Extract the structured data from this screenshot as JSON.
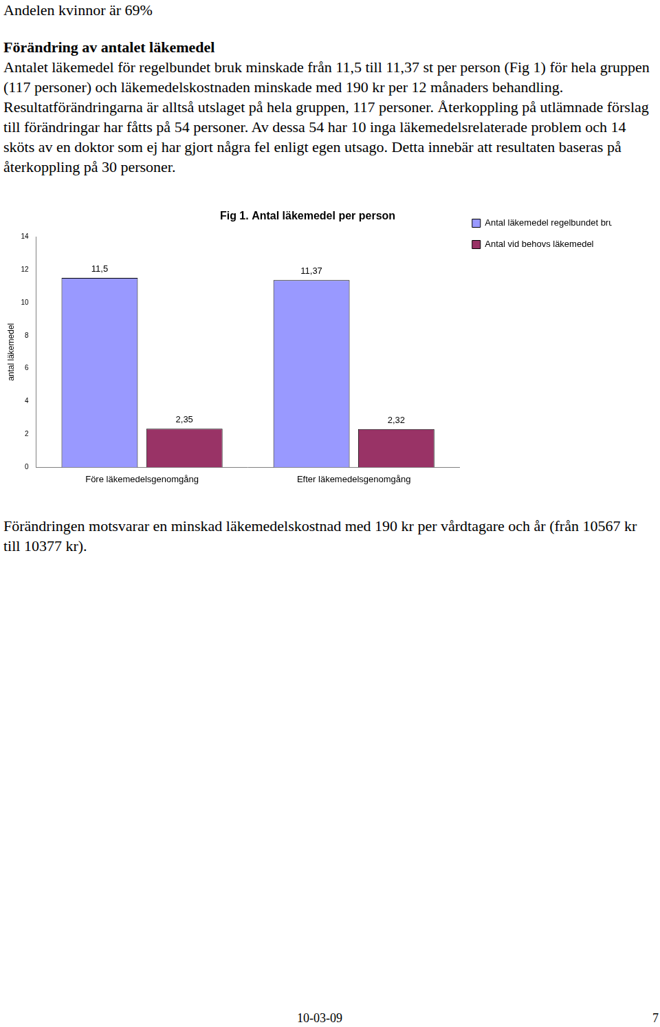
{
  "top_line": "Andelen kvinnor är 69%",
  "heading": "Förändring av antalet läkemedel",
  "paragraph_1": "Antalet läkemedel för regelbundet bruk minskade från 11,5 till 11,37 st per person (Fig 1) för hela gruppen (117 personer) och läkemedelskostnaden minskade med 190 kr per 12 månaders behandling. Resultatförändringarna är alltså utslaget på hela gruppen, 117 personer. Återkoppling på utlämnade förslag till förändringar har fåtts på 54 personer. Av dessa 54 har 10 inga läkemedelsrelaterade problem och 14 sköts av en doktor som ej har gjort några fel enligt egen utsago. Detta innebär att resultaten baseras på återkoppling på 30 personer.",
  "chart_data": {
    "type": "bar",
    "title": "Fig 1. Antal läkemedel per person",
    "y_label": "antal läkemedel",
    "categories": [
      "Före läkemedelsgenomgång",
      "Efter läkemedelsgenomgång"
    ],
    "series": [
      {
        "name": "Antal läkemedel regelbundet bruk",
        "color": "#9999ff",
        "values": [
          11.5,
          11.37
        ],
        "value_labels": [
          "11,5",
          "11,37"
        ]
      },
      {
        "name": "Antal vid behovs läkemedel",
        "color": "#993366",
        "values": [
          2.35,
          2.32
        ],
        "value_labels": [
          "2,35",
          "2,32"
        ]
      }
    ],
    "ylim": [
      0,
      14
    ],
    "yticks": [
      0,
      2,
      4,
      6,
      8,
      10,
      12,
      14
    ],
    "grid": false,
    "legend": "top-right",
    "data_labels": true
  },
  "paragraph_2": "Förändringen motsvarar en minskad läkemedelskostnad med 190 kr per vårdtagare och år (från 10567 kr till 10377 kr).",
  "footer": {
    "date": "10-03-09",
    "page": 7
  }
}
